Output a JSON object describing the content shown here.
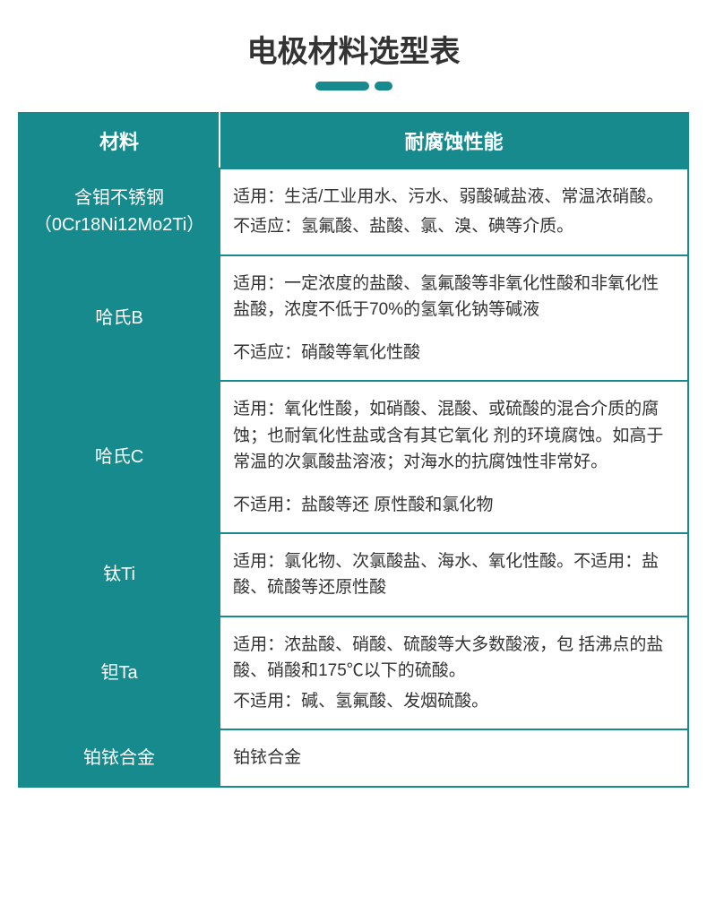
{
  "title": "电极材料选型表",
  "colors": {
    "teal": "#178a8e",
    "white": "#ffffff",
    "text": "#333333",
    "border": "#178a8e"
  },
  "table": {
    "headers": [
      "材料",
      "耐腐蚀性能"
    ],
    "col_widths": [
      "30%",
      "70%"
    ],
    "rows": [
      {
        "material_lines": [
          "含钼不锈钢",
          "（0Cr18Ni12Mo2Ti）"
        ],
        "desc": [
          {
            "text": "适用：生活/工业用水、污水、弱酸碱盐液、常温浓硝酸。",
            "gap": false
          },
          {
            "text": "不适应：氢氟酸、盐酸、氯、溴、碘等介质。",
            "gap": false
          }
        ]
      },
      {
        "material_lines": [
          "哈氏B"
        ],
        "desc": [
          {
            "text": "适用：一定浓度的盐酸、氢氟酸等非氧化性酸和非氧化性盐酸，浓度不低于70%的氢氧化钠等碱液",
            "gap": false
          },
          {
            "text": "不适应：硝酸等氧化性酸",
            "gap": true
          }
        ]
      },
      {
        "material_lines": [
          "哈氏C"
        ],
        "desc": [
          {
            "text": "适用：氧化性酸，如硝酸、混酸、或硫酸的混合介质的腐蚀；也耐氧化性盐或含有其它氧化 剂的环境腐蚀。如高于常温的次氯酸盐溶液；对海水的抗腐蚀性非常好。",
            "gap": false
          },
          {
            "text": "不适用：盐酸等还 原性酸和氯化物",
            "gap": true
          }
        ]
      },
      {
        "material_lines": [
          "钛Ti"
        ],
        "desc": [
          {
            "text": "适用：氯化物、次氯酸盐、海水、氧化性酸。不适用：盐酸、硫酸等还原性酸",
            "gap": false
          }
        ]
      },
      {
        "material_lines": [
          "钽Ta"
        ],
        "desc": [
          {
            "text": "适用：浓盐酸、硝酸、硫酸等大多数酸液，包 括沸点的盐酸、硝酸和175℃以下的硫酸。",
            "gap": false
          },
          {
            "text": "不适用：碱、氢氟酸、发烟硫酸。",
            "gap": false
          }
        ]
      },
      {
        "material_lines": [
          "铂铱合金"
        ],
        "desc": [
          {
            "text": "铂铱合金",
            "gap": false
          }
        ]
      }
    ]
  }
}
